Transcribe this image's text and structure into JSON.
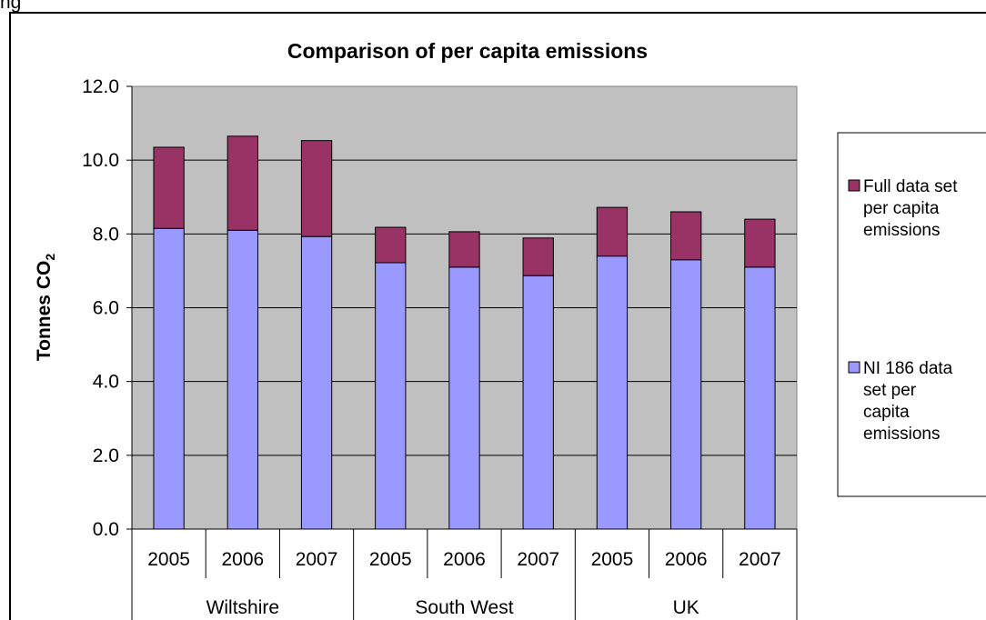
{
  "caption_fragment": "ng",
  "chart_data": {
    "type": "bar",
    "stacked": true,
    "title": "Comparison of per capita emissions",
    "ylabel": "Tonnes CO",
    "ylabel_subscript": "2",
    "xlabel": "",
    "ylim": [
      0,
      12
    ],
    "yticks": [
      "0.0",
      "2.0",
      "4.0",
      "6.0",
      "8.0",
      "10.0",
      "12.0"
    ],
    "grid": true,
    "legend_position": "right",
    "groups": [
      {
        "label": "Wiltshire",
        "categories": [
          "2005",
          "2006",
          "2007"
        ]
      },
      {
        "label": "South West",
        "categories": [
          "2005",
          "2006",
          "2007"
        ]
      },
      {
        "label": "UK",
        "categories": [
          "2005",
          "2006",
          "2007"
        ]
      }
    ],
    "series": [
      {
        "name": "NI 186 data set per capita emissions",
        "legend_lines": [
          "NI 186 data",
          "set per",
          "capita",
          "emissions"
        ],
        "color": "#9999FF",
        "values": [
          8.15,
          8.1,
          7.93,
          7.22,
          7.1,
          6.87,
          7.4,
          7.3,
          7.1
        ]
      },
      {
        "name": "Full data set per capita emissions",
        "legend_lines": [
          "Full data set",
          "per capita",
          "emissions"
        ],
        "color": "#993366",
        "values": [
          2.2,
          2.55,
          2.6,
          0.96,
          0.96,
          1.02,
          1.32,
          1.3,
          1.3
        ]
      }
    ],
    "plot_background": "#C0C0C0"
  }
}
